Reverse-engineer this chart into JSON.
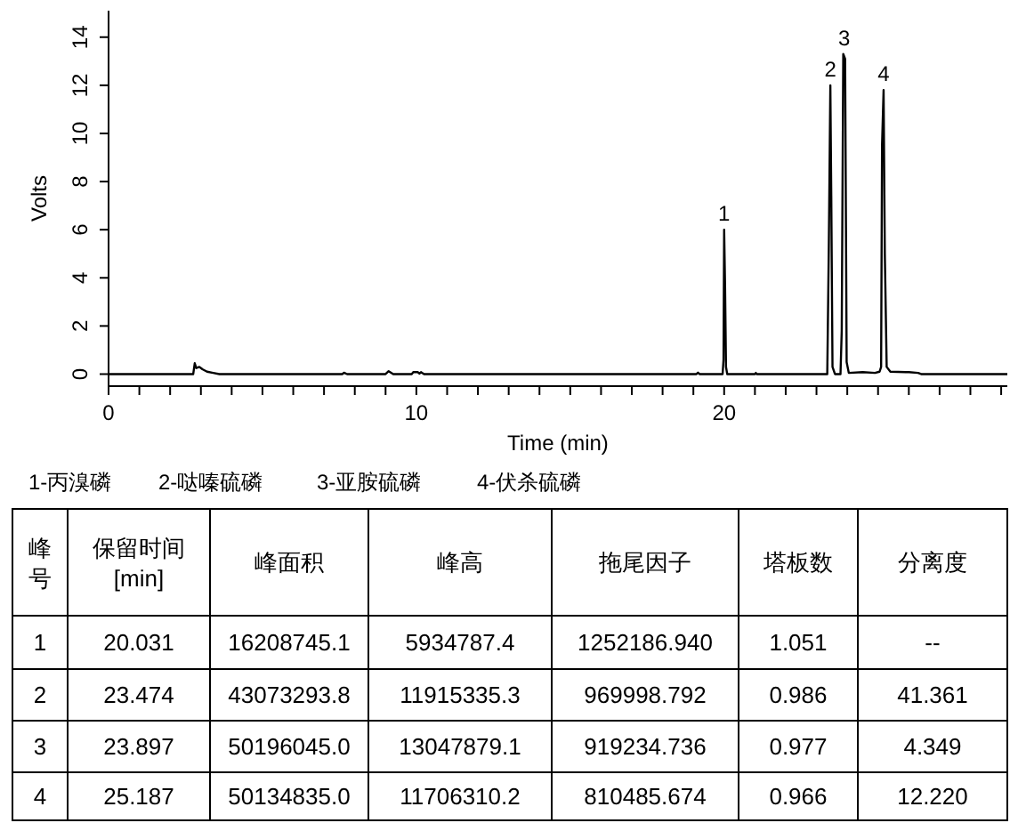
{
  "chart_data": {
    "type": "line",
    "xlabel": "Time (min)",
    "ylabel": "Volts",
    "xlim": [
      0,
      29.2
    ],
    "ylim": [
      -0.5,
      15.1
    ],
    "xticks": [
      0,
      {
        "value": 1,
        "label": null
      },
      {
        "value": 2,
        "label": null
      },
      {
        "value": 3,
        "label": null
      },
      {
        "value": 4,
        "label": null
      },
      {
        "value": 5,
        "label": null
      },
      {
        "value": 6,
        "label": null
      },
      {
        "value": 7,
        "label": null
      },
      {
        "value": 8,
        "label": null
      },
      {
        "value": 9,
        "label": null
      },
      10,
      {
        "value": 11,
        "label": null
      },
      {
        "value": 12,
        "label": null
      },
      {
        "value": 13,
        "label": null
      },
      {
        "value": 14,
        "label": null
      },
      {
        "value": 15,
        "label": null
      },
      {
        "value": 16,
        "label": null
      },
      {
        "value": 17,
        "label": null
      },
      {
        "value": 18,
        "label": null
      },
      {
        "value": 19,
        "label": null
      },
      20,
      {
        "value": 21,
        "label": null
      },
      {
        "value": 22,
        "label": null
      },
      {
        "value": 23,
        "label": null
      },
      {
        "value": 24,
        "label": null
      },
      {
        "value": 25,
        "label": null
      },
      {
        "value": 26,
        "label": null
      },
      {
        "value": 27,
        "label": null
      },
      {
        "value": 28,
        "label": null
      },
      {
        "value": 29,
        "label": null
      }
    ],
    "yticks": [
      0,
      2,
      4,
      6,
      8,
      10,
      12,
      14
    ],
    "series": [
      {
        "color": "#000000",
        "x": [
          0,
          2.75,
          2.8,
          2.85,
          2.95,
          3.05,
          3.2,
          3.4,
          3.6,
          7.6,
          7.65,
          7.75,
          9.0,
          9.1,
          9.25,
          9.85,
          9.9,
          10.05,
          10.1,
          10.15,
          10.25,
          19.1,
          19.15,
          19.2,
          19.95,
          19.98,
          20.0,
          20.03,
          20.06,
          20.1,
          21.0,
          21.03,
          21.06,
          23.35,
          23.4,
          23.45,
          23.48,
          23.52,
          23.6,
          23.78,
          23.82,
          23.87,
          23.93,
          23.98,
          24.05,
          24.5,
          24.9,
          25.05,
          25.1,
          25.13,
          25.18,
          25.22,
          25.28,
          25.4,
          26.0,
          26.3,
          26.4,
          29.2
        ],
        "values": [
          0,
          0,
          0.45,
          0.25,
          0.3,
          0.2,
          0.1,
          0.05,
          0,
          0,
          0.06,
          0,
          0,
          0.12,
          0,
          0,
          0.08,
          0.08,
          0.02,
          0.08,
          0,
          0,
          0.06,
          0,
          0,
          0.6,
          6.0,
          3.6,
          0.3,
          0,
          0,
          0.05,
          0,
          0,
          5.2,
          12.0,
          7.4,
          0.3,
          0,
          0,
          1.8,
          13.3,
          13.1,
          0.5,
          0.05,
          0.08,
          0.05,
          0.1,
          0.3,
          9.5,
          11.8,
          5.0,
          0.3,
          0.1,
          0.08,
          0.05,
          0,
          0
        ]
      }
    ],
    "annotations": [
      {
        "text": "1",
        "x": 20.0,
        "y": 6.0
      },
      {
        "text": "2",
        "x": 23.45,
        "y": 12.0
      },
      {
        "text": "3",
        "x": 23.9,
        "y": 13.3
      },
      {
        "text": "4",
        "x": 25.18,
        "y": 11.8
      },
      "1-丙溴磷",
      "2-哒嗪硫磷",
      "3-亚胺硫磷",
      "4-伏杀硫磷",
      "峰号",
      "保留时间 [min]",
      "峰面积",
      "峰高",
      "拖尾因子",
      "塔板数",
      "分离度",
      "1",
      "20.031",
      "16208745.1",
      "5934787.4",
      "1252186.940",
      "1.051",
      "--",
      "2",
      "23.474",
      "43073293.8",
      "11915335.3",
      "969998.792",
      "0.986",
      "41.361",
      "3",
      "23.897",
      "50196045.0",
      "13047879.1",
      "919234.736",
      "0.977",
      "4.349",
      "4",
      "25.187",
      "50134835.0",
      "11706310.2",
      "810485.674",
      "0.966",
      "12.220"
    ]
  }
}
